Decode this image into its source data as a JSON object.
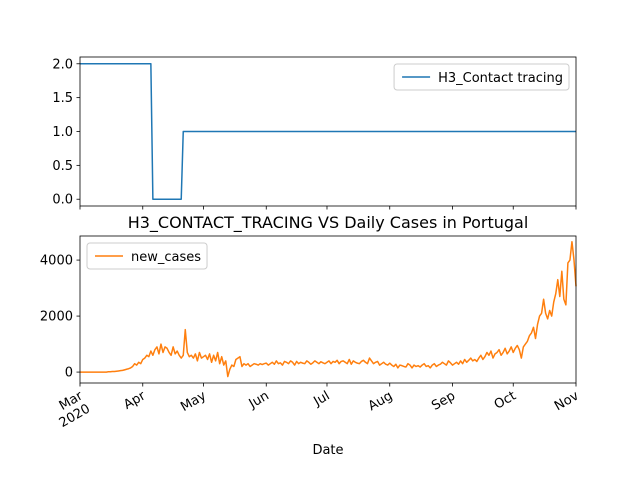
{
  "chart_data": [
    {
      "type": "line",
      "series": [
        {
          "name": "H3_Contact tracing",
          "color": "#1f77b4",
          "values": [
            2,
            2,
            2,
            2,
            2,
            2,
            2,
            2,
            2,
            2,
            2,
            2,
            2,
            2,
            2,
            2,
            2,
            2,
            2,
            2,
            2,
            2,
            2,
            2,
            2,
            2,
            2,
            2,
            2,
            2,
            2,
            2,
            2,
            2,
            2,
            2,
            0,
            0,
            0,
            0,
            0,
            0,
            0,
            0,
            0,
            0,
            0,
            0,
            0,
            0,
            0,
            1,
            1,
            1,
            1,
            1,
            1,
            1,
            1,
            1,
            1,
            1,
            1,
            1,
            1,
            1,
            1,
            1,
            1,
            1,
            1,
            1,
            1,
            1,
            1,
            1,
            1,
            1,
            1,
            1,
            1,
            1,
            1,
            1,
            1,
            1,
            1,
            1,
            1,
            1,
            1,
            1,
            1,
            1,
            1,
            1,
            1,
            1,
            1,
            1,
            1,
            1,
            1,
            1,
            1,
            1,
            1,
            1,
            1,
            1,
            1,
            1,
            1,
            1,
            1,
            1,
            1,
            1,
            1,
            1,
            1,
            1,
            1,
            1,
            1,
            1,
            1,
            1,
            1,
            1,
            1,
            1,
            1,
            1,
            1,
            1,
            1,
            1,
            1,
            1,
            1,
            1,
            1,
            1,
            1,
            1,
            1,
            1,
            1,
            1,
            1,
            1,
            1,
            1,
            1,
            1,
            1,
            1,
            1,
            1,
            1,
            1,
            1,
            1,
            1,
            1,
            1,
            1,
            1,
            1,
            1,
            1,
            1,
            1,
            1,
            1,
            1,
            1,
            1,
            1,
            1,
            1,
            1,
            1,
            1,
            1,
            1,
            1,
            1,
            1,
            1,
            1,
            1,
            1,
            1,
            1,
            1,
            1,
            1,
            1,
            1,
            1,
            1,
            1,
            1,
            1,
            1,
            1,
            1,
            1,
            1,
            1,
            1,
            1,
            1,
            1,
            1,
            1,
            1,
            1,
            1,
            1,
            1,
            1,
            1,
            1,
            1,
            1,
            1,
            1,
            1,
            1,
            1,
            1,
            1,
            1,
            1,
            1,
            1,
            1,
            1,
            1,
            1,
            1,
            1,
            1
          ]
        }
      ],
      "ylim": [
        -0.1,
        2.1
      ],
      "yticks": [
        {
          "value": 0,
          "label": "0.0"
        },
        {
          "value": 0.5,
          "label": "0.5"
        },
        {
          "value": 1,
          "label": "1.0"
        },
        {
          "value": 1.5,
          "label": "1.5"
        },
        {
          "value": 2,
          "label": "2.0"
        }
      ],
      "legend": "upper right"
    },
    {
      "type": "line",
      "title": "H3_CONTACT_TRACING VS Daily Cases in Portugal",
      "xlabel": "Date",
      "categories": [
        "Mar\n2020",
        null,
        null,
        null,
        null,
        null,
        null,
        null,
        null,
        null,
        null,
        null,
        null,
        null,
        null,
        null,
        null,
        null,
        null,
        null,
        null,
        null,
        null,
        null,
        null,
        null,
        null,
        null,
        null,
        null,
        null,
        "Apr",
        null,
        null,
        null,
        null,
        null,
        null,
        null,
        null,
        null,
        null,
        null,
        null,
        null,
        null,
        null,
        null,
        null,
        null,
        null,
        null,
        null,
        null,
        null,
        null,
        null,
        null,
        null,
        null,
        null,
        "May",
        null,
        null,
        null,
        null,
        null,
        null,
        null,
        null,
        null,
        null,
        null,
        null,
        null,
        null,
        null,
        null,
        null,
        null,
        null,
        null,
        null,
        null,
        null,
        null,
        null,
        null,
        null,
        null,
        null,
        null,
        "Jun",
        null,
        null,
        null,
        null,
        null,
        null,
        null,
        null,
        null,
        null,
        null,
        null,
        null,
        null,
        null,
        null,
        null,
        null,
        null,
        null,
        null,
        null,
        null,
        null,
        null,
        null,
        null,
        null,
        null,
        "Jul",
        null,
        null,
        null,
        null,
        null,
        null,
        null,
        null,
        null,
        null,
        null,
        null,
        null,
        null,
        null,
        null,
        null,
        null,
        null,
        null,
        null,
        null,
        null,
        null,
        null,
        null,
        null,
        null,
        null,
        null,
        "Aug",
        null,
        null,
        null,
        null,
        null,
        null,
        null,
        null,
        null,
        null,
        null,
        null,
        null,
        null,
        null,
        null,
        null,
        null,
        null,
        null,
        null,
        null,
        null,
        null,
        null,
        null,
        null,
        null,
        null,
        null,
        "Sep",
        null,
        null,
        null,
        null,
        null,
        null,
        null,
        null,
        null,
        null,
        null,
        null,
        null,
        null,
        null,
        null,
        null,
        null,
        null,
        null,
        null,
        null,
        null,
        null,
        null,
        null,
        null,
        null,
        null,
        "Oct",
        null,
        null,
        null,
        null,
        null,
        null,
        null,
        null,
        null,
        null,
        null,
        null,
        null,
        null,
        null,
        null,
        null,
        null,
        null,
        null,
        null,
        null,
        null,
        null,
        null,
        null,
        null,
        null,
        null,
        null,
        "Nov"
      ],
      "series": [
        {
          "name": "new_cases",
          "color": "#ff7f0e",
          "values": [
            0,
            0,
            0,
            0,
            0,
            0,
            0,
            0,
            0,
            0,
            0,
            0,
            0,
            0,
            10,
            10,
            20,
            20,
            30,
            40,
            50,
            60,
            80,
            100,
            120,
            150,
            200,
            300,
            250,
            350,
            300,
            450,
            500,
            600,
            550,
            750,
            600,
            800,
            900,
            650,
            1000,
            700,
            900,
            850,
            700,
            600,
            900,
            650,
            750,
            600,
            500,
            600,
            1516,
            700,
            550,
            600,
            500,
            650,
            400,
            700,
            500,
            550,
            600,
            450,
            650,
            350,
            600,
            400,
            700,
            300,
            550,
            250,
            400,
            -160,
            100,
            250,
            200,
            450,
            500,
            550,
            200,
            300,
            250,
            300,
            200,
            250,
            300,
            280,
            250,
            300,
            270,
            300,
            320,
            250,
            300,
            350,
            280,
            400,
            300,
            330,
            250,
            380,
            350,
            300,
            400,
            350,
            250,
            380,
            300,
            350,
            320,
            300,
            400,
            350,
            280,
            330,
            400,
            350,
            300,
            370,
            330,
            300,
            350,
            400,
            300,
            380,
            350,
            420,
            300,
            380,
            400,
            350,
            300,
            450,
            280,
            400,
            350,
            320,
            300,
            380,
            420,
            350,
            300,
            500,
            400,
            300,
            350,
            380,
            250,
            300,
            350,
            280,
            250,
            320,
            250,
            200,
            280,
            150,
            250,
            230,
            200,
            180,
            300,
            250,
            150,
            250,
            200,
            230,
            180,
            250,
            300,
            200,
            230,
            150,
            250,
            300,
            200,
            250,
            280,
            350,
            300,
            250,
            400,
            330,
            250,
            300,
            350,
            280,
            400,
            300,
            450,
            350,
            420,
            500,
            400,
            450,
            380,
            500,
            600,
            450,
            550,
            700,
            600,
            750,
            500,
            650,
            700,
            800,
            600,
            700,
            850,
            650,
            750,
            900,
            700,
            850,
            950,
            800,
            500,
            900,
            1000,
            1100,
            1300,
            1400,
            1600,
            1200,
            1700,
            2000,
            2100,
            2600,
            2100,
            1900,
            2200,
            2000,
            2500,
            2800,
            3300,
            2700,
            3600,
            2600,
            2400,
            3900,
            4000,
            4656,
            4007,
            3062
          ]
        }
      ],
      "ylim": [
        -390,
        4860
      ],
      "yticks": [
        0,
        2000,
        4000
      ],
      "legend": "upper left"
    }
  ]
}
